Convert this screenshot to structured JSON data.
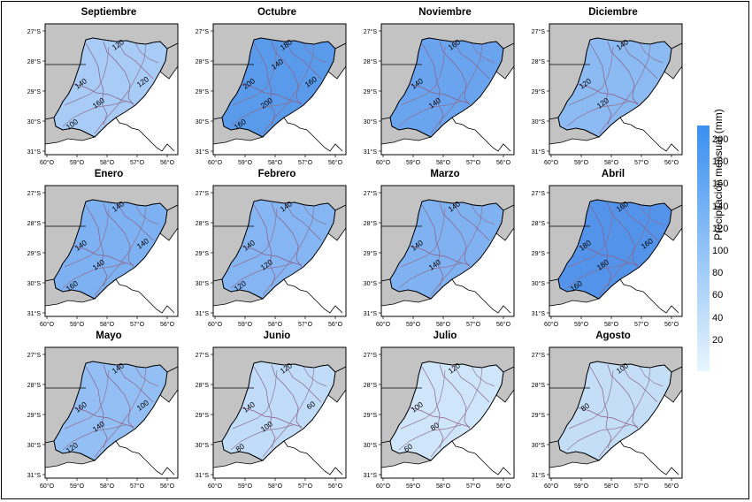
{
  "legend": {
    "title": "Precipitación mensual (mm)",
    "ticks": [
      "200",
      "180",
      "160",
      "140",
      "120",
      "100",
      "80",
      "60",
      "40",
      "20"
    ],
    "color_min": "#e8f6fd",
    "color_max": "#3a8ff0"
  },
  "axes": {
    "lat_labels": [
      "27°S",
      "28°S",
      "29°S",
      "30°S",
      "31°S"
    ],
    "lon_labels": [
      "60°O",
      "59°O",
      "58°O",
      "57°O",
      "56°O"
    ]
  },
  "colors": {
    "land_outside": "#c3c3c3",
    "sea": "#ffffff",
    "contour": "#8e6c87",
    "river": "#8a5f86",
    "border": "#000000"
  },
  "panels": [
    {
      "month": "Septiembre",
      "fill": "#a8ccf6",
      "contours": [
        "120",
        "140",
        "160",
        "100",
        "120"
      ]
    },
    {
      "month": "Octubre",
      "fill": "#5a9aeb",
      "contours": [
        "180",
        "200",
        "200",
        "160",
        "160",
        "140"
      ]
    },
    {
      "month": "Noviembre",
      "fill": "#6aa4ef",
      "contours": [
        "160",
        "140",
        "140"
      ]
    },
    {
      "month": "Diciembre",
      "fill": "#8cbaf3",
      "contours": [
        "140",
        "120",
        "120"
      ]
    },
    {
      "month": "Enero",
      "fill": "#7eb1f1",
      "contours": [
        "140",
        "140",
        "140",
        "160",
        "140"
      ]
    },
    {
      "month": "Febrero",
      "fill": "#85b5f2",
      "contours": [
        "140",
        "140",
        "120",
        "120"
      ]
    },
    {
      "month": "Marzo",
      "fill": "#80b2f1",
      "contours": [
        "140",
        "140",
        "140"
      ]
    },
    {
      "month": "Abril",
      "fill": "#5393ea",
      "contours": [
        "160",
        "180",
        "180",
        "160",
        "160"
      ]
    },
    {
      "month": "Mayo",
      "fill": "#94bff4",
      "contours": [
        "140",
        "160",
        "140",
        "120",
        "100"
      ]
    },
    {
      "month": "Junio",
      "fill": "#c0dcf8",
      "contours": [
        "120",
        "140",
        "100",
        "80",
        "60"
      ]
    },
    {
      "month": "Julio",
      "fill": "#cfe6fa",
      "contours": [
        "120",
        "100",
        "80",
        "60"
      ]
    },
    {
      "month": "Agosto",
      "fill": "#c4def8",
      "contours": [
        "100",
        "80"
      ]
    }
  ]
}
